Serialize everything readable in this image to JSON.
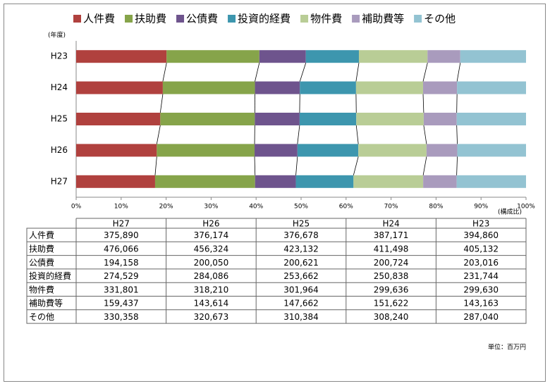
{
  "chart_data": {
    "type": "bar",
    "stacked": "percent",
    "orientation": "horizontal",
    "y_axis_label": "(年度)",
    "x_axis_label": "(構成比)",
    "unit_note": "単位：百万円",
    "categories": [
      "H23",
      "H24",
      "H25",
      "H26",
      "H27"
    ],
    "xlim": [
      0,
      100
    ],
    "xticks": [
      {
        "value": 0,
        "label": "0%"
      },
      {
        "value": 10,
        "label": "10%"
      },
      {
        "value": 20,
        "label": "20%"
      },
      {
        "value": 30,
        "label": "30%"
      },
      {
        "value": 40,
        "label": "40%"
      },
      {
        "value": 50,
        "label": "50%"
      },
      {
        "value": 60,
        "label": "60%"
      },
      {
        "value": 70,
        "label": "70%"
      },
      {
        "value": 80,
        "label": "80%"
      },
      {
        "value": 90,
        "label": "90%"
      },
      {
        "value": 100,
        "label": "100%"
      }
    ],
    "series": [
      {
        "name": "人件費",
        "color": "#b0413e",
        "values": [
          394860,
          387171,
          376678,
          376174,
          375890
        ],
        "value_labels": [
          "394,860",
          "387,171",
          "376,678",
          "376,174",
          "375,890"
        ]
      },
      {
        "name": "扶助費",
        "color": "#86a44a",
        "values": [
          405132,
          411498,
          423132,
          456324,
          476066
        ],
        "value_labels": [
          "405,132",
          "411,498",
          "423,132",
          "456,324",
          "476,066"
        ]
      },
      {
        "name": "公債費",
        "color": "#6e548d",
        "values": [
          203016,
          200724,
          200621,
          200050,
          194158
        ],
        "value_labels": [
          "203,016",
          "200,724",
          "200,621",
          "200,050",
          "194,158"
        ]
      },
      {
        "name": "投資的経費",
        "color": "#3d96ae",
        "values": [
          231744,
          250838,
          253662,
          284086,
          274529
        ],
        "value_labels": [
          "231,744",
          "250,838",
          "253,662",
          "284,086",
          "274,529"
        ]
      },
      {
        "name": "物件費",
        "color": "#b9cd96",
        "values": [
          299630,
          299636,
          301964,
          318210,
          331801
        ],
        "value_labels": [
          "299,630",
          "299,636",
          "301,964",
          "318,210",
          "331,801"
        ]
      },
      {
        "name": "補助費等",
        "color": "#a99bbd",
        "values": [
          143163,
          151622,
          147662,
          143614,
          159437
        ],
        "value_labels": [
          "143,163",
          "151,622",
          "147,662",
          "143,614",
          "159,437"
        ]
      },
      {
        "name": "その他",
        "color": "#93c3d2",
        "values": [
          287040,
          308240,
          310384,
          320673,
          330358
        ],
        "value_labels": [
          "287,040",
          "308,240",
          "310,384",
          "320,673",
          "330,358"
        ]
      }
    ]
  }
}
